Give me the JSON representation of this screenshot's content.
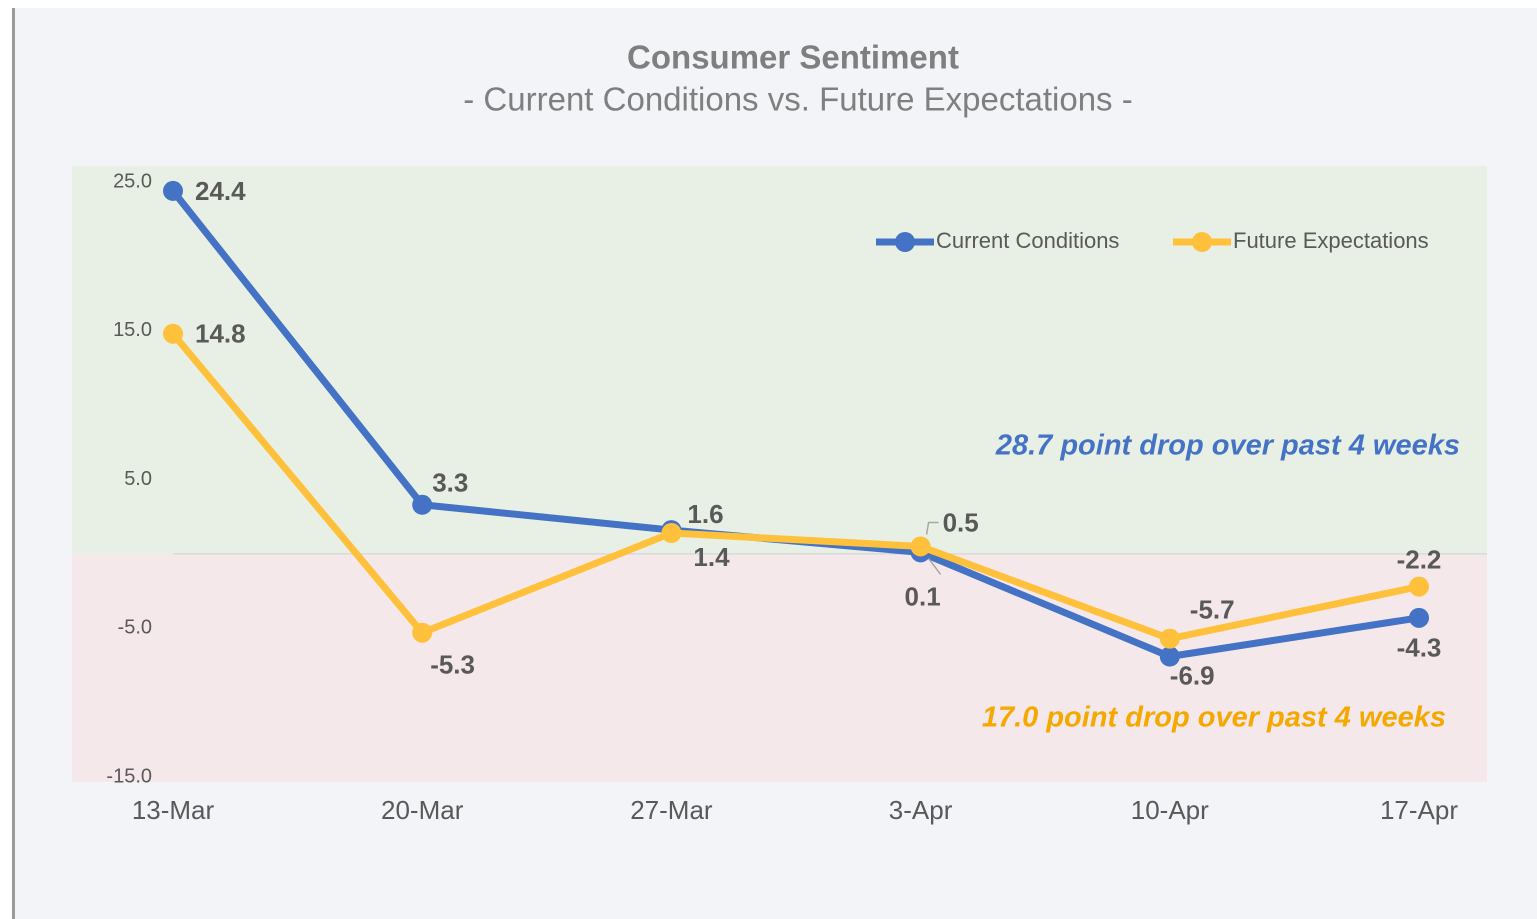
{
  "chart_data": {
    "type": "line",
    "title": "Consumer Sentiment",
    "subtitle": "- Current Conditions vs. Future Expectations -",
    "categories": [
      "13-Mar",
      "20-Mar",
      "27-Mar",
      "3-Apr",
      "10-Apr",
      "17-Apr"
    ],
    "series": [
      {
        "name": "Current Conditions",
        "color": "#4472c4",
        "values": [
          24.4,
          3.3,
          1.6,
          0.1,
          -6.9,
          -4.3
        ]
      },
      {
        "name": "Future Expectations",
        "color": "#ffc13b",
        "values": [
          14.8,
          -5.3,
          1.4,
          0.5,
          -5.7,
          -2.2
        ]
      }
    ],
    "ylim": [
      -15,
      25
    ],
    "yticks": [
      {
        "value": 25,
        "label": "25.0"
      },
      {
        "value": 15,
        "label": "15.0"
      },
      {
        "value": 5,
        "label": "5.0"
      },
      {
        "value": -5,
        "label": "-5.0"
      },
      {
        "value": -15,
        "label": "-15.0"
      }
    ],
    "grid": false,
    "legend": "top-right",
    "annotations": [
      {
        "text": "28.7 point drop over past 4 weeks",
        "color": "#4472c4"
      },
      {
        "text": "17.0 point drop over past 4 weeks",
        "color": "#f5a800"
      }
    ]
  }
}
